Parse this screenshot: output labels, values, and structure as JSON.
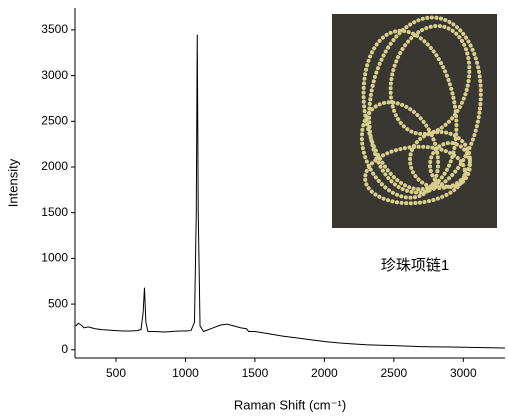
{
  "chart_data": {
    "type": "line",
    "xlabel": "Raman Shift (cm⁻¹)",
    "ylabel": "Intensity",
    "annotation": "珍珠项链1",
    "x": [
      210,
      230,
      250,
      270,
      300,
      350,
      400,
      450,
      500,
      550,
      600,
      650,
      680,
      695,
      705,
      715,
      730,
      780,
      850,
      900,
      950,
      1000,
      1040,
      1065,
      1078,
      1085,
      1092,
      1105,
      1130,
      1200,
      1250,
      1300,
      1350,
      1400,
      1440,
      1455,
      1500,
      1600,
      1700,
      1800,
      1900,
      2000,
      2100,
      2200,
      2300,
      2400,
      2500,
      2600,
      2700,
      2800,
      2900,
      3000,
      3100,
      3200,
      3300
    ],
    "series": [
      {
        "color": "#000000",
        "values": [
          260,
          290,
          270,
          240,
          250,
          230,
          220,
          215,
          210,
          205,
          205,
          210,
          220,
          400,
          680,
          300,
          200,
          200,
          195,
          200,
          205,
          205,
          210,
          300,
          1500,
          3450,
          1500,
          260,
          200,
          240,
          270,
          280,
          260,
          240,
          230,
          200,
          200,
          175,
          150,
          130,
          110,
          90,
          75,
          65,
          55,
          50,
          45,
          40,
          35,
          32,
          30,
          28,
          25,
          22,
          20
        ]
      }
    ],
    "xlim": [
      205,
      3300
    ],
    "ylim": [
      -90,
      3740
    ],
    "xticks": [
      500,
      1000,
      1500,
      2000,
      2500,
      3000
    ],
    "yticks": [
      0,
      500,
      1000,
      1500,
      2000,
      2500,
      3000,
      3500
    ]
  }
}
